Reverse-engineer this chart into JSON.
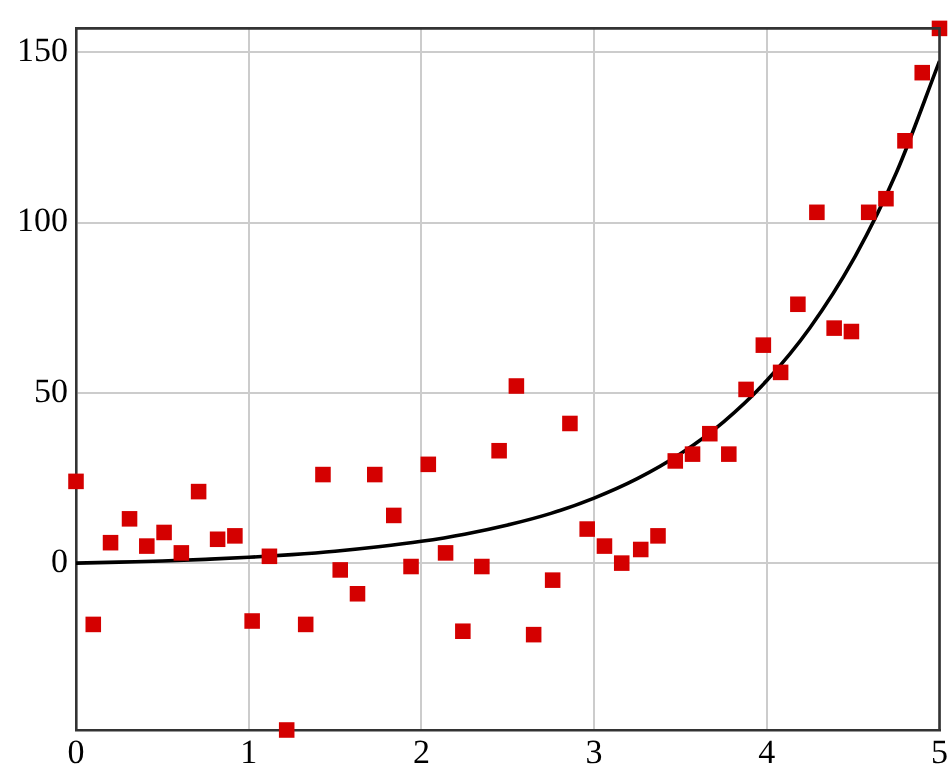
{
  "chart_data": {
    "type": "scatter",
    "x": [
      0,
      0.1,
      0.2,
      0.31,
      0.41,
      0.51,
      0.61,
      0.71,
      0.82,
      0.92,
      1.02,
      1.12,
      1.22,
      1.33,
      1.43,
      1.53,
      1.63,
      1.73,
      1.84,
      1.94,
      2.04,
      2.14,
      2.24,
      2.35,
      2.45,
      2.55,
      2.65,
      2.76,
      2.86,
      2.96,
      3.06,
      3.16,
      3.27,
      3.37,
      3.47,
      3.57,
      3.67,
      3.78,
      3.88,
      3.98,
      4.08,
      4.18,
      4.29,
      4.39,
      4.49,
      4.59,
      4.69,
      4.8,
      4.9,
      5
    ],
    "series": [
      {
        "type": "scatter",
        "color": "#d40000",
        "values": [
          24,
          -18,
          6,
          13,
          5,
          9,
          3,
          21,
          7,
          8,
          -17,
          2,
          -49,
          -18,
          26,
          -2,
          -9,
          26,
          14,
          -1,
          29,
          3,
          -20,
          -1,
          33,
          52,
          -21,
          -5,
          41,
          10,
          5,
          0,
          4,
          8,
          30,
          32,
          38,
          32,
          51,
          64,
          56,
          76,
          103,
          69,
          68,
          103,
          107,
          124,
          144,
          157
        ]
      },
      {
        "type": "line",
        "color": "#000000",
        "marker": "none",
        "x": [
          0,
          0.25,
          0.5,
          0.75,
          1,
          1.25,
          1.5,
          1.75,
          2,
          2.25,
          2.5,
          2.75,
          3,
          3.25,
          3.5,
          3.75,
          4,
          4.25,
          4.5,
          4.75,
          5
        ],
        "values": [
          0,
          0.3,
          0.6,
          1.1,
          1.7,
          2.5,
          3.5,
          4.8,
          6.4,
          8.5,
          11.2,
          14.6,
          19.1,
          24.8,
          32.1,
          41.5,
          53.6,
          69.1,
          89,
          114.6,
          147.4
        ]
      }
    ],
    "xlim": [
      0,
      5
    ],
    "xticks": [
      0,
      1,
      2,
      3,
      4,
      5
    ],
    "ylim": [
      -49,
      157
    ],
    "yticks": [
      0,
      50,
      100,
      150
    ],
    "grid": true,
    "legend": false,
    "marker": "square",
    "line_style": "solid"
  }
}
